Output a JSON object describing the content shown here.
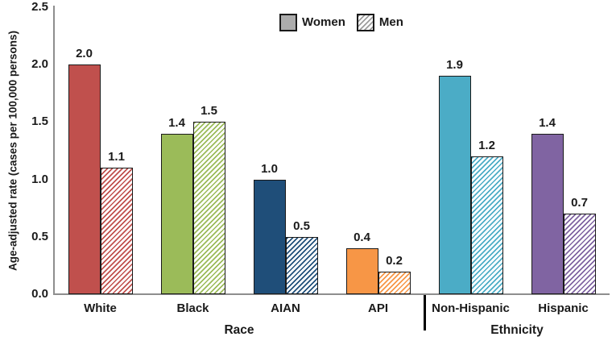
{
  "chart_data": {
    "type": "bar",
    "title": "",
    "ylabel": "Age-adjusted rate (cases per 100,000 persons)",
    "ylim": [
      0,
      2.5
    ],
    "yticks": [
      "0.0",
      "0.5",
      "1.0",
      "1.5",
      "2.0",
      "2.5"
    ],
    "grid": false,
    "legend_position": "top-center",
    "legend": [
      "Women",
      "Men"
    ],
    "categories": [
      "White",
      "Black",
      "AIAN",
      "API",
      "Non-Hispanic",
      "Hispanic"
    ],
    "series": [
      {
        "name": "Women",
        "style": "solid",
        "values": [
          2.0,
          1.4,
          1.0,
          0.4,
          1.9,
          1.4
        ]
      },
      {
        "name": "Men",
        "style": "hatched",
        "values": [
          1.1,
          1.5,
          0.5,
          0.2,
          1.2,
          0.7
        ]
      }
    ],
    "category_groups": [
      {
        "label": "Race",
        "span": 4
      },
      {
        "label": "Ethnicity",
        "span": 2
      }
    ],
    "colors": {
      "category_bar_colors": [
        "#C0504D",
        "#9BBB59",
        "#1F4E79",
        "#F79646",
        "#4BACC6",
        "#8064A2"
      ],
      "legend_swatch": "#ACACAC",
      "legend_hatch_stripe": "#9C9C9C",
      "axis": "#8E8E8E",
      "bar_border": "#1A1A1A",
      "group_divider": "#000000",
      "text": "#1A1A1A",
      "background": "#FFFFFF"
    }
  }
}
